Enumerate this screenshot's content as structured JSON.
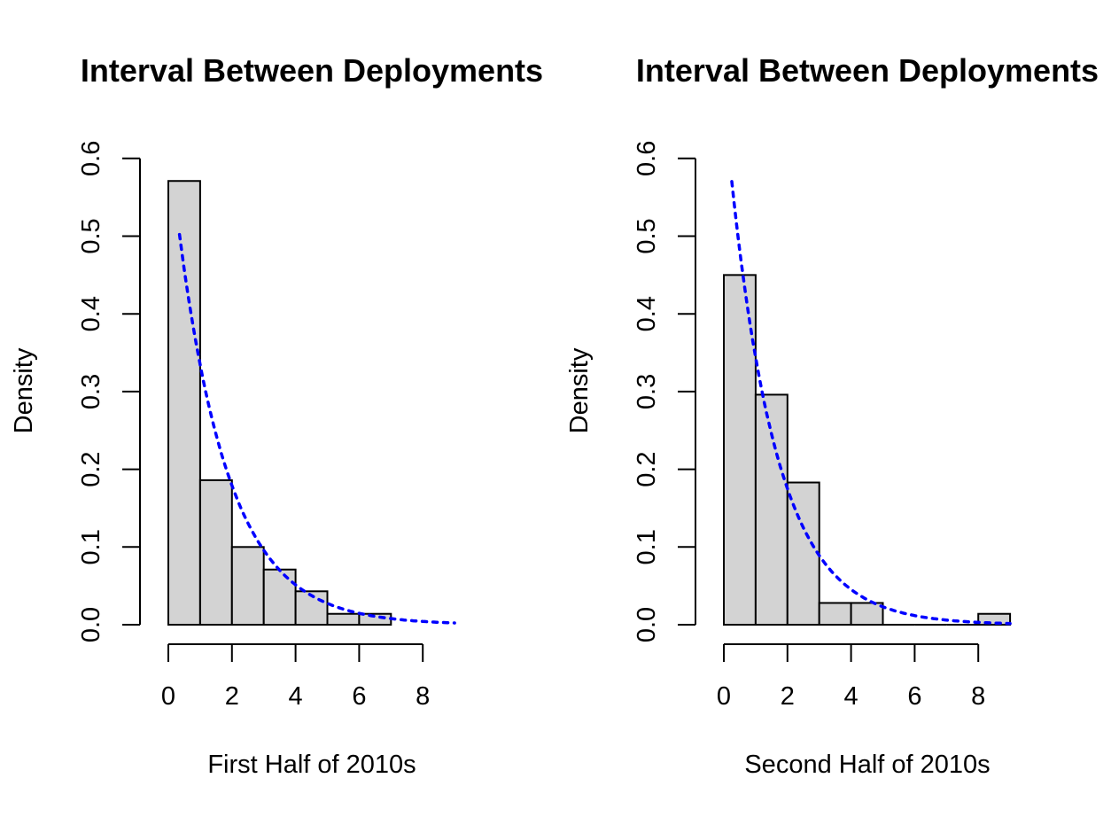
{
  "chart_data": [
    {
      "type": "bar",
      "title": "Interval Between Deployments",
      "xlabel": "First Half of 2010s",
      "ylabel": "Density",
      "xlim": [
        0,
        9
      ],
      "ylim": [
        0,
        0.6
      ],
      "x_ticks": [
        "0",
        "2",
        "4",
        "6",
        "8"
      ],
      "y_ticks": [
        "0.0",
        "0.1",
        "0.2",
        "0.3",
        "0.4",
        "0.5",
        "0.6"
      ],
      "bin_edges": [
        0,
        1,
        2,
        3,
        4,
        5,
        6,
        7
      ],
      "values": [
        0.571,
        0.186,
        0.1,
        0.071,
        0.043,
        0.014,
        0.014
      ],
      "bar_fill": "#d3d3d3",
      "curve": {
        "kind": "exponential density",
        "rate": 0.625,
        "x_range": [
          0.35,
          9
        ],
        "color": "#0000ff",
        "style": "dotted"
      },
      "grid": false
    },
    {
      "type": "bar",
      "title": "Interval Between Deployments",
      "xlabel": "Second Half of 2010s",
      "ylabel": "Density",
      "xlim": [
        0,
        9
      ],
      "ylim": [
        0,
        0.6
      ],
      "x_ticks": [
        "0",
        "2",
        "4",
        "6",
        "8"
      ],
      "y_ticks": [
        "0.0",
        "0.1",
        "0.2",
        "0.3",
        "0.4",
        "0.5",
        "0.6"
      ],
      "bin_edges": [
        0,
        1,
        2,
        3,
        4,
        5,
        6,
        7,
        8,
        9
      ],
      "values": [
        0.45,
        0.296,
        0.183,
        0.028,
        0.028,
        0,
        0,
        0,
        0.014
      ],
      "bar_fill": "#d3d3d3",
      "curve": {
        "kind": "exponential density",
        "rate": 0.675,
        "x_range": [
          0.25,
          9
        ],
        "color": "#0000ff",
        "style": "dotted"
      },
      "grid": false
    }
  ]
}
